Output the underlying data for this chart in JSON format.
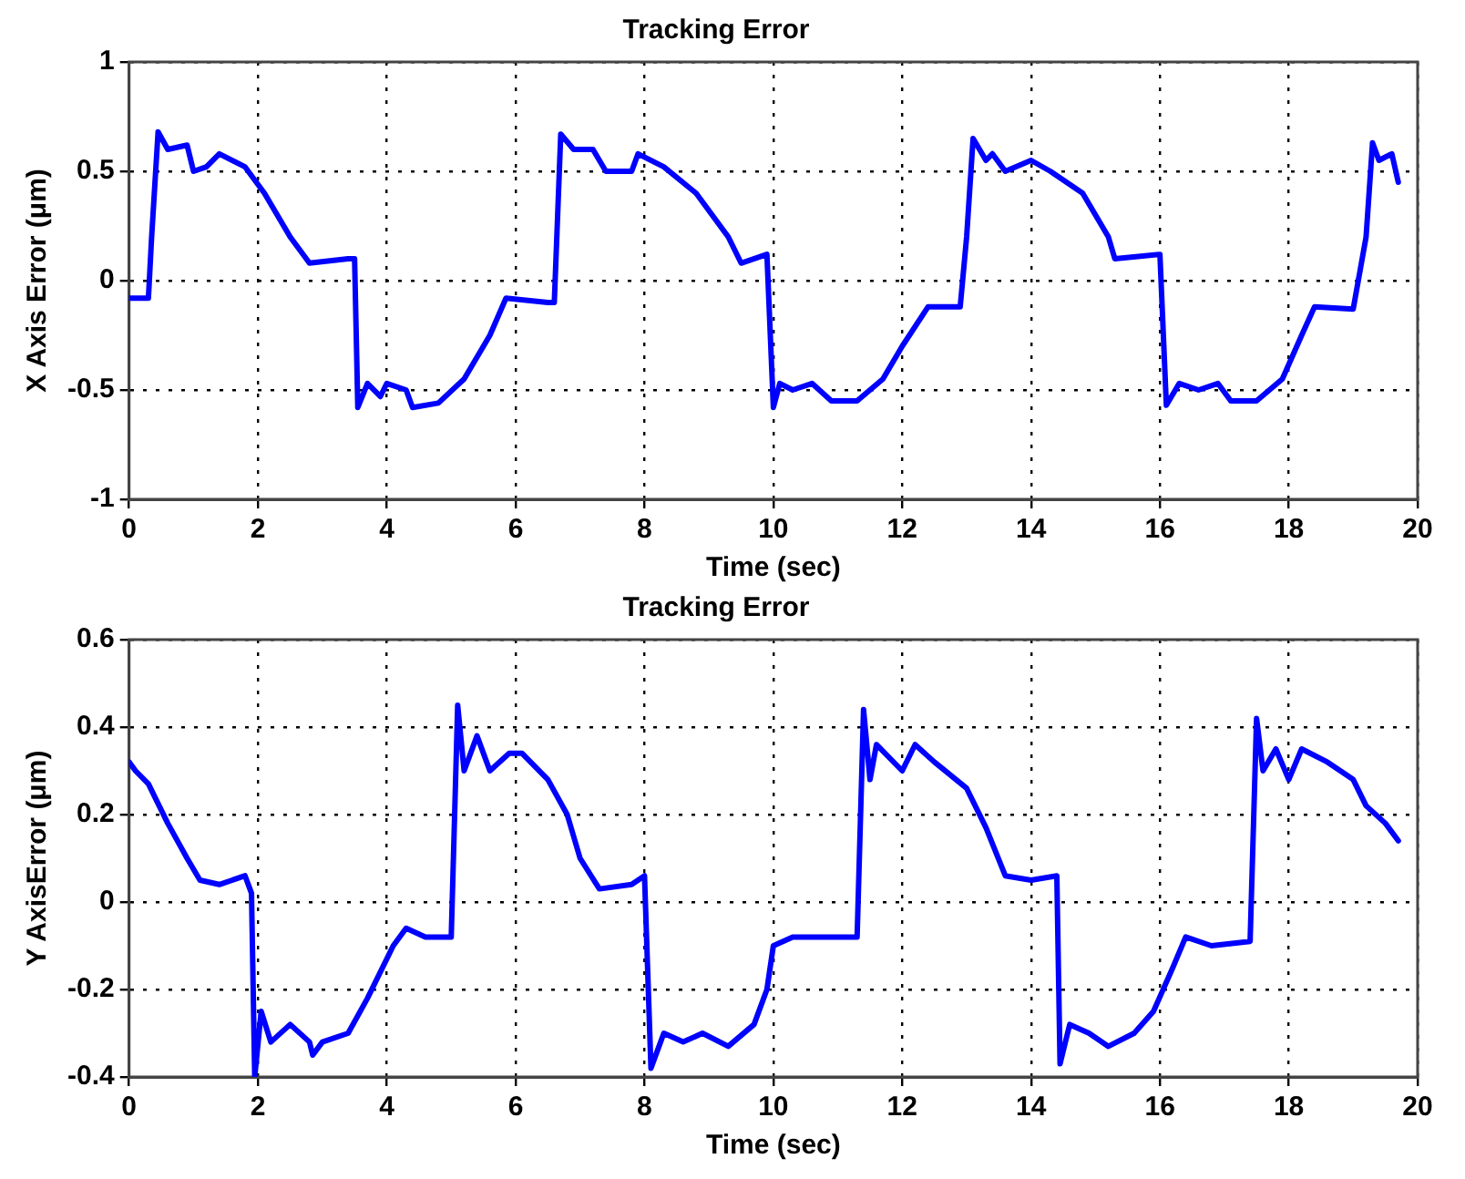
{
  "chart_data": [
    {
      "type": "line",
      "title": "Tracking Error",
      "xlabel": "Time (sec)",
      "ylabel": "X Axis Error (μm)",
      "xlim": [
        0,
        20
      ],
      "xticks": [
        0,
        2,
        4,
        6,
        8,
        10,
        12,
        14,
        16,
        18,
        20
      ],
      "ylim": [
        -1,
        1
      ],
      "yticks": [
        -1,
        -0.5,
        0,
        0.5,
        1
      ],
      "grid": true,
      "legend": false,
      "marker": "none",
      "line_style": "solid",
      "series": [
        {
          "color": "#0000ff",
          "x": [
            0,
            0.3,
            0.35,
            0.45,
            0.6,
            0.9,
            1.0,
            1.2,
            1.4,
            1.8,
            2.1,
            2.5,
            2.8,
            3.4,
            3.5,
            3.55,
            3.7,
            3.9,
            4.0,
            4.3,
            4.4,
            4.8,
            5.2,
            5.6,
            5.85,
            6.5,
            6.6,
            6.7,
            6.9,
            7.2,
            7.4,
            7.8,
            7.9,
            8.3,
            8.8,
            9.3,
            9.5,
            9.9,
            10.0,
            10.1,
            10.3,
            10.6,
            10.9,
            11.3,
            11.7,
            12.0,
            12.4,
            12.9,
            13.0,
            13.1,
            13.3,
            13.4,
            13.6,
            14.0,
            14.3,
            14.8,
            15.2,
            15.3,
            16.0,
            16.1,
            16.3,
            16.6,
            16.9,
            17.1,
            17.5,
            17.9,
            18.2,
            18.4,
            19.0,
            19.2,
            19.3,
            19.4,
            19.6,
            19.7
          ],
          "values": [
            -0.08,
            -0.08,
            0.2,
            0.68,
            0.6,
            0.62,
            0.5,
            0.52,
            0.58,
            0.52,
            0.4,
            0.2,
            0.08,
            0.1,
            0.1,
            -0.58,
            -0.47,
            -0.53,
            -0.47,
            -0.5,
            -0.58,
            -0.56,
            -0.45,
            -0.25,
            -0.08,
            -0.1,
            -0.1,
            0.67,
            0.6,
            0.6,
            0.5,
            0.5,
            0.58,
            0.52,
            0.4,
            0.2,
            0.08,
            0.12,
            -0.58,
            -0.47,
            -0.5,
            -0.47,
            -0.55,
            -0.55,
            -0.45,
            -0.3,
            -0.12,
            -0.12,
            0.2,
            0.65,
            0.55,
            0.58,
            0.5,
            0.55,
            0.5,
            0.4,
            0.2,
            0.1,
            0.12,
            -0.57,
            -0.47,
            -0.5,
            -0.47,
            -0.55,
            -0.55,
            -0.45,
            -0.25,
            -0.12,
            -0.13,
            0.2,
            0.63,
            0.55,
            0.58,
            0.45
          ]
        }
      ]
    },
    {
      "type": "line",
      "title": "Tracking Error",
      "xlabel": "Time (sec)",
      "ylabel": "Y AxisError (μm)",
      "xlim": [
        0,
        20
      ],
      "xticks": [
        0,
        2,
        4,
        6,
        8,
        10,
        12,
        14,
        16,
        18,
        20
      ],
      "ylim": [
        -0.4,
        0.6
      ],
      "yticks": [
        -0.4,
        -0.2,
        0,
        0.2,
        0.4,
        0.6
      ],
      "grid": true,
      "legend": false,
      "marker": "none",
      "line_style": "solid",
      "series": [
        {
          "color": "#0000ff",
          "x": [
            0,
            0.1,
            0.3,
            0.6,
            0.9,
            1.1,
            1.4,
            1.8,
            1.9,
            1.95,
            2.05,
            2.2,
            2.5,
            2.8,
            2.85,
            3.0,
            3.4,
            3.7,
            4.1,
            4.3,
            4.6,
            5.0,
            5.1,
            5.2,
            5.4,
            5.6,
            5.9,
            6.1,
            6.5,
            6.8,
            7.0,
            7.3,
            7.8,
            8.0,
            8.1,
            8.3,
            8.6,
            8.9,
            9.3,
            9.7,
            9.9,
            10.0,
            10.3,
            10.7,
            11.3,
            11.4,
            11.5,
            11.6,
            12.0,
            12.2,
            12.5,
            13.0,
            13.3,
            13.6,
            14.0,
            14.4,
            14.45,
            14.6,
            14.9,
            15.2,
            15.6,
            15.9,
            16.2,
            16.4,
            16.8,
            17.4,
            17.5,
            17.6,
            17.8,
            18.0,
            18.2,
            18.6,
            19.0,
            19.2,
            19.5,
            19.7
          ],
          "values": [
            0.32,
            0.3,
            0.27,
            0.18,
            0.1,
            0.05,
            0.04,
            0.06,
            0.02,
            -0.4,
            -0.25,
            -0.32,
            -0.28,
            -0.32,
            -0.35,
            -0.32,
            -0.3,
            -0.22,
            -0.1,
            -0.06,
            -0.08,
            -0.08,
            0.45,
            0.3,
            0.38,
            0.3,
            0.34,
            0.34,
            0.28,
            0.2,
            0.1,
            0.03,
            0.04,
            0.06,
            -0.38,
            -0.3,
            -0.32,
            -0.3,
            -0.33,
            -0.28,
            -0.2,
            -0.1,
            -0.08,
            -0.08,
            -0.08,
            0.44,
            0.28,
            0.36,
            0.3,
            0.36,
            0.32,
            0.26,
            0.17,
            0.06,
            0.05,
            0.06,
            -0.37,
            -0.28,
            -0.3,
            -0.33,
            -0.3,
            -0.25,
            -0.15,
            -0.08,
            -0.1,
            -0.09,
            0.42,
            0.3,
            0.35,
            0.28,
            0.35,
            0.32,
            0.28,
            0.22,
            0.18,
            0.14
          ]
        }
      ]
    }
  ]
}
